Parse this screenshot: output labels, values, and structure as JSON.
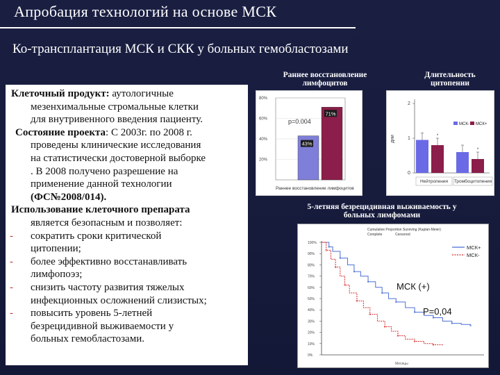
{
  "slide": {
    "title": "Апробация технологий на основе МСК",
    "subtitle": "Ко-трансплантация МСК и СКК у больных гемобластозами"
  },
  "text_panel": {
    "p1_label": "Клеточный продукт:",
    "p1_text_a": " аутологичные",
    "p1_text_b": "мезенхимальные стромальные клетки",
    "p1_text_c": "для внутривенного введения пациенту.",
    "p2_label": "Состояние проекта",
    "p2_text_a": ": С 2003г. по 2008 г.",
    "p2_text_b": "проведены клинические исследования",
    "p2_text_c": "на статистически достоверной выборке",
    "p2_text_d": ". В 2008 получено разрешение на",
    "p2_text_e": "применение данной технологии",
    "p2_text_f": "(ФС№2008/014).",
    "p3_a": "Использование клеточного препарата",
    "p3_b": "является безопасным и позволяет:",
    "bullet_mark": "-",
    "b1_a": "сократить сроки критической",
    "b1_b": "цитопении;",
    "b2_a": "более эффективно восстанавливать",
    "b2_b": "лимфопоэз;",
    "b3_a": "снизить частоту развития тяжелых",
    "b3_b": "инфекционных осложнений слизистых;",
    "b4_a": "повысить уровень 5-летней",
    "b4_b": "безрецидивной выживаемости у",
    "b4_c": "больных гемобластозами."
  },
  "captions": {
    "early_a": "Раннее восстановление",
    "early_b": "лимфоцитов",
    "dur_a": "Длительность",
    "dur_b": "цитопении",
    "surv_a": "5-летняя безрецидивная выживаемость у",
    "surv_b": "больных лимфомами"
  },
  "chart_data": [
    {
      "type": "bar",
      "categories": [
        "",
        ""
      ],
      "values": [
        43,
        71
      ],
      "data_labels": [
        "43%",
        "71%"
      ],
      "annotation": "p=0.004",
      "xlabel": "Раннее восстановление лимфоцитов",
      "y_ticks": [
        "80%",
        "60%",
        "40%",
        "20%"
      ],
      "ylim": [
        0,
        80
      ],
      "colors": [
        "#7f7fd9",
        "#8b1e4a"
      ]
    },
    {
      "type": "bar",
      "categories": [
        "Нейтропения",
        "Тромбоцитопения"
      ],
      "series": [
        {
          "name": "МСК-",
          "values": [
            0.95,
            0.6
          ],
          "color": "#6a6ae6"
        },
        {
          "name": "МСК+",
          "values": [
            0.8,
            0.4
          ],
          "color": "#8b1e4a"
        }
      ],
      "ylabel": "дни",
      "ylim": [
        0,
        2
      ],
      "y_ticks": [
        "2",
        "1",
        "0"
      ],
      "legend": "top-right",
      "star_marks": [
        "*",
        "*"
      ]
    },
    {
      "type": "line",
      "title": "Cumulative Proportion Surviving (Kaplan-Meier)",
      "legend_header": [
        "Complete",
        "Censored"
      ],
      "series": [
        {
          "name": "МСК+",
          "color": "#4a6fd6",
          "x": [
            0,
            8,
            12,
            20,
            28,
            35,
            42,
            50,
            58,
            65,
            72,
            80,
            90,
            100,
            110,
            120,
            130,
            140,
            150,
            160
          ],
          "y": [
            1.0,
            0.96,
            0.92,
            0.86,
            0.8,
            0.74,
            0.7,
            0.65,
            0.6,
            0.55,
            0.5,
            0.47,
            0.42,
            0.38,
            0.35,
            0.33,
            0.3,
            0.28,
            0.27,
            0.26
          ]
        },
        {
          "name": "МСК-",
          "color": "#d62a2a",
          "x": [
            0,
            5,
            10,
            15,
            20,
            25,
            30,
            38,
            45,
            52,
            60,
            68,
            75,
            82,
            90,
            100,
            110,
            120,
            130
          ],
          "y": [
            1.0,
            0.93,
            0.85,
            0.78,
            0.7,
            0.62,
            0.55,
            0.48,
            0.42,
            0.36,
            0.3,
            0.25,
            0.21,
            0.17,
            0.14,
            0.12,
            0.1,
            0.09,
            0.08
          ]
        }
      ],
      "y_ticks": [
        "100%",
        "90%",
        "80%",
        "70%",
        "60%",
        "50%",
        "40%",
        "30%",
        "20%",
        "10%",
        "0%"
      ],
      "ylim": [
        0,
        1
      ],
      "annotations": [
        "МСК (+)",
        "P=0,04"
      ],
      "xlabel": "Месяцы"
    }
  ]
}
